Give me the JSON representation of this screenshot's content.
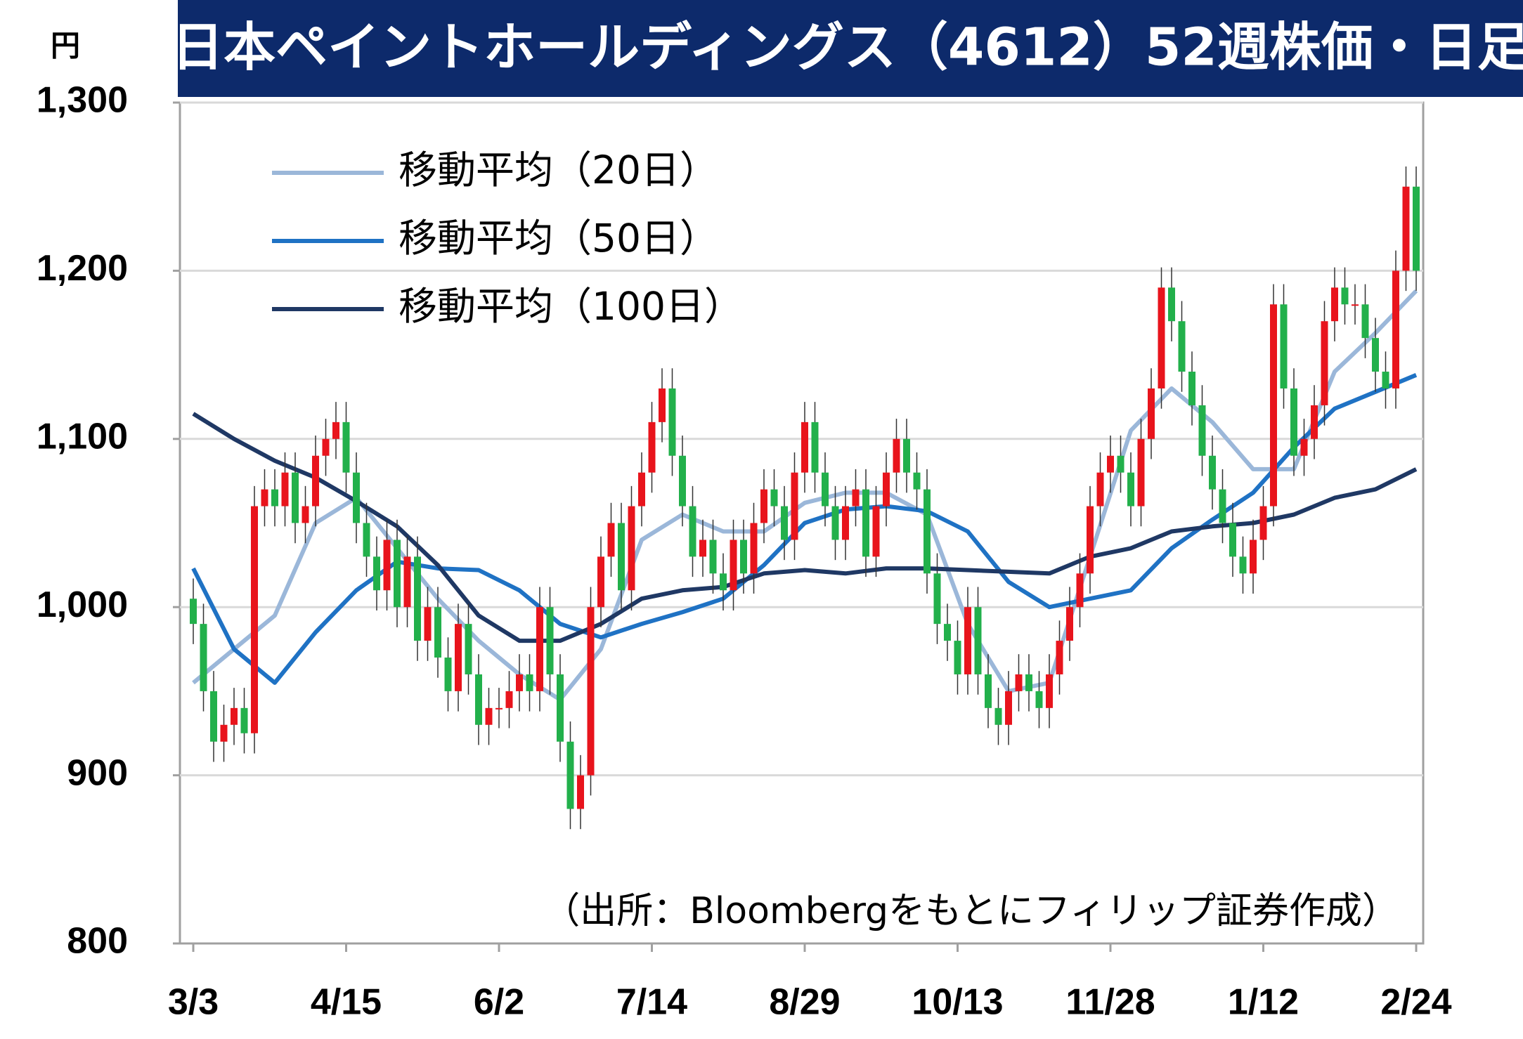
{
  "chart_data": {
    "type": "candlestick",
    "title": "日本ペイントホールディングス（4612）52週株価・日足",
    "y_unit": "円",
    "source": "（出所：Bloombergをもとにフィリップ証券作成）",
    "up_color": "#e8141c",
    "down_color": "#22b04b",
    "grid": true,
    "xlim": [
      0,
      120
    ],
    "xticks": [
      {
        "value": 0,
        "label": "3/3"
      },
      {
        "value": 15,
        "label": "4/15"
      },
      {
        "value": 30,
        "label": "6/2"
      },
      {
        "value": 45,
        "label": "7/14"
      },
      {
        "value": 60,
        "label": "8/29"
      },
      {
        "value": 75,
        "label": "10/13"
      },
      {
        "value": 90,
        "label": "11/28"
      },
      {
        "value": 105,
        "label": "1/12"
      },
      {
        "value": 120,
        "label": "2/24"
      }
    ],
    "ylim": [
      800,
      1300
    ],
    "yticks": [
      800,
      900,
      {
        "value": 1000,
        "label": "1,000"
      },
      {
        "value": 1100,
        "label": "1,100"
      },
      {
        "value": 1200,
        "label": "1,200"
      },
      {
        "value": 1300,
        "label": "1,300"
      }
    ],
    "open": [
      1005,
      990,
      950,
      920,
      930,
      940,
      925,
      1060,
      1070,
      1060,
      1080,
      1050,
      1060,
      1090,
      1100,
      1110,
      1080,
      1050,
      1030,
      1010,
      1040,
      1000,
      1030,
      980,
      1000,
      970,
      950,
      990,
      960,
      930,
      940,
      940,
      950,
      960,
      950,
      1000,
      960,
      920,
      880,
      900,
      1000,
      1030,
      1050,
      1010,
      1060,
      1080,
      1110,
      1130,
      1090,
      1060,
      1030,
      1040,
      1020,
      1010,
      1040,
      1020,
      1050,
      1070,
      1060,
      1040,
      1080,
      1110,
      1080,
      1060,
      1040,
      1060,
      1070,
      1030,
      1060,
      1080,
      1100,
      1080,
      1070,
      1020,
      990,
      980,
      960,
      1000,
      960,
      940,
      930,
      950,
      960,
      950,
      940,
      960,
      980,
      1000,
      1020,
      1060,
      1080,
      1090,
      1080,
      1060,
      1100,
      1130,
      1190,
      1170,
      1140,
      1120,
      1090,
      1070,
      1050,
      1030,
      1020,
      1040,
      1060,
      1180,
      1130,
      1090,
      1100,
      1120,
      1170,
      1190,
      1180,
      1180,
      1160,
      1140,
      1130,
      1200,
      1250
    ],
    "high": [
      1017,
      1002,
      962,
      942,
      952,
      952,
      1072,
      1082,
      1082,
      1092,
      1092,
      1072,
      1102,
      1112,
      1122,
      1122,
      1092,
      1062,
      1042,
      1052,
      1052,
      1042,
      1042,
      1012,
      1012,
      982,
      1002,
      1002,
      972,
      952,
      952,
      962,
      972,
      972,
      1012,
      1012,
      972,
      932,
      912,
      1012,
      1042,
      1062,
      1062,
      1072,
      1092,
      1122,
      1142,
      1142,
      1102,
      1072,
      1052,
      1052,
      1032,
      1052,
      1052,
      1062,
      1082,
      1082,
      1072,
      1092,
      1122,
      1122,
      1092,
      1072,
      1072,
      1082,
      1082,
      1072,
      1092,
      1112,
      1112,
      1092,
      1082,
      1032,
      1002,
      992,
      1012,
      1012,
      972,
      952,
      962,
      972,
      972,
      962,
      972,
      992,
      1012,
      1032,
      1072,
      1092,
      1102,
      1102,
      1092,
      1112,
      1142,
      1202,
      1202,
      1182,
      1152,
      1132,
      1102,
      1082,
      1062,
      1042,
      1052,
      1072,
      1192,
      1192,
      1142,
      1112,
      1132,
      1182,
      1202,
      1202,
      1192,
      1192,
      1172,
      1152,
      1212,
      1262,
      1262
    ],
    "low": [
      978,
      938,
      908,
      908,
      918,
      913,
      913,
      1048,
      1048,
      1048,
      1038,
      1038,
      1048,
      1078,
      1088,
      1068,
      1038,
      1018,
      998,
      998,
      988,
      988,
      968,
      968,
      958,
      938,
      938,
      948,
      918,
      918,
      928,
      928,
      938,
      938,
      938,
      948,
      908,
      868,
      868,
      888,
      988,
      1018,
      998,
      998,
      1048,
      1068,
      1098,
      1078,
      1048,
      1018,
      1018,
      1008,
      998,
      998,
      1008,
      1008,
      1038,
      1048,
      1028,
      1028,
      1068,
      1068,
      1048,
      1028,
      1028,
      1048,
      1018,
      1018,
      1048,
      1068,
      1068,
      1058,
      1008,
      978,
      968,
      948,
      948,
      948,
      928,
      918,
      918,
      938,
      938,
      928,
      928,
      948,
      968,
      988,
      1008,
      1048,
      1068,
      1068,
      1048,
      1048,
      1088,
      1118,
      1158,
      1128,
      1108,
      1078,
      1058,
      1038,
      1018,
      1008,
      1008,
      1028,
      1048,
      1118,
      1078,
      1078,
      1088,
      1108,
      1158,
      1168,
      1168,
      1148,
      1128,
      1118,
      1118,
      1188,
      1188
    ],
    "close": [
      990,
      950,
      920,
      930,
      940,
      925,
      1060,
      1070,
      1060,
      1080,
      1050,
      1060,
      1090,
      1100,
      1110,
      1080,
      1050,
      1030,
      1010,
      1040,
      1000,
      1030,
      980,
      1000,
      970,
      950,
      990,
      960,
      930,
      940,
      940,
      950,
      960,
      950,
      1000,
      960,
      920,
      880,
      900,
      1000,
      1030,
      1050,
      1010,
      1060,
      1080,
      1110,
      1130,
      1090,
      1060,
      1030,
      1040,
      1020,
      1010,
      1040,
      1020,
      1050,
      1070,
      1060,
      1040,
      1080,
      1110,
      1080,
      1060,
      1040,
      1060,
      1070,
      1030,
      1060,
      1080,
      1100,
      1080,
      1070,
      1020,
      990,
      980,
      960,
      1000,
      960,
      940,
      930,
      950,
      960,
      950,
      940,
      960,
      980,
      1000,
      1020,
      1060,
      1080,
      1090,
      1080,
      1060,
      1100,
      1130,
      1190,
      1170,
      1140,
      1120,
      1090,
      1070,
      1050,
      1030,
      1020,
      1040,
      1060,
      1180,
      1130,
      1090,
      1100,
      1120,
      1170,
      1190,
      1180,
      1180,
      1160,
      1140,
      1130,
      1200,
      1250,
      1200
    ],
    "series": [
      {
        "name": "移動平均（20日）",
        "color": "#9bb7d9",
        "x": [
          0,
          4,
          8,
          12,
          16,
          20,
          24,
          28,
          32,
          36,
          40,
          44,
          48,
          52,
          56,
          60,
          64,
          68,
          72,
          76,
          80,
          84,
          88,
          92,
          96,
          100,
          104,
          108,
          112,
          116,
          120
        ],
        "values": [
          955,
          975,
          995,
          1050,
          1065,
          1035,
          1005,
          980,
          960,
          945,
          975,
          1040,
          1055,
          1045,
          1045,
          1062,
          1068,
          1068,
          1055,
          990,
          950,
          955,
          1030,
          1105,
          1130,
          1110,
          1082,
          1082,
          1140,
          1163,
          1188
        ]
      },
      {
        "name": "移動平均（50日）",
        "color": "#1f72c4",
        "x": [
          0,
          4,
          8,
          12,
          16,
          20,
          24,
          28,
          32,
          36,
          40,
          44,
          48,
          52,
          56,
          60,
          64,
          68,
          72,
          76,
          80,
          84,
          88,
          92,
          96,
          100,
          104,
          108,
          112,
          116,
          120
        ],
        "values": [
          1023,
          975,
          955,
          985,
          1010,
          1027,
          1023,
          1022,
          1010,
          990,
          982,
          990,
          997,
          1005,
          1025,
          1050,
          1058,
          1060,
          1057,
          1045,
          1015,
          1000,
          1005,
          1010,
          1035,
          1052,
          1068,
          1095,
          1118,
          1128,
          1138
        ]
      },
      {
        "name": "移動平均（100日）",
        "color": "#1f3864",
        "x": [
          0,
          4,
          8,
          12,
          16,
          20,
          24,
          28,
          32,
          36,
          40,
          44,
          48,
          52,
          56,
          60,
          64,
          68,
          72,
          76,
          80,
          84,
          88,
          92,
          96,
          100,
          104,
          108,
          112,
          116,
          120
        ],
        "values": [
          1115,
          1100,
          1087,
          1077,
          1063,
          1048,
          1025,
          995,
          980,
          980,
          990,
          1005,
          1010,
          1012,
          1020,
          1022,
          1020,
          1023,
          1023,
          1022,
          1021,
          1020,
          1030,
          1035,
          1045,
          1048,
          1050,
          1055,
          1065,
          1070,
          1082
        ]
      }
    ]
  }
}
